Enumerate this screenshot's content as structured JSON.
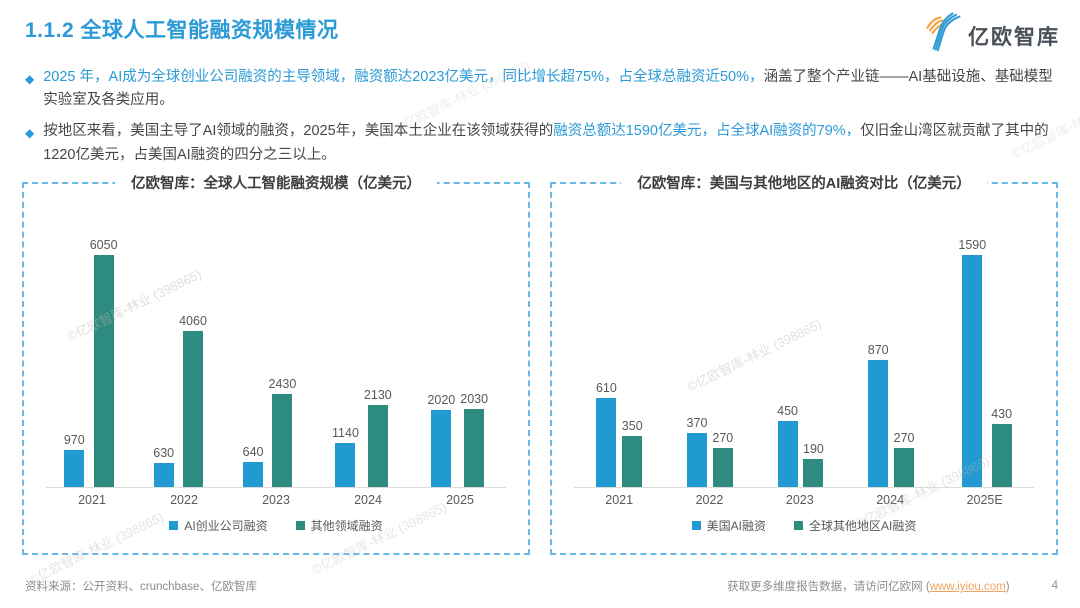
{
  "header": {
    "title": "1.1.2 全球人工智能融资规模情况",
    "brand": "亿欧智库"
  },
  "bullets": [
    {
      "segments": [
        {
          "text": "2025 年，AI成为全球创业公司融资的主导领域，融资额达2023亿美元，同比增长超75%，占全球总融资近50%，",
          "style": "accent"
        },
        {
          "text": "涵盖了整个产业链——AI基础设施、基础模型实验室及各类应用。",
          "style": "dark"
        }
      ]
    },
    {
      "segments": [
        {
          "text": "按地区来看，美国主导了AI领域的融资，2025年，美国本土企业在该领域获得的",
          "style": "dark"
        },
        {
          "text": "融资总额达1590亿美元，占全球AI融资的79%，",
          "style": "accent"
        },
        {
          "text": "仅旧金山湾区就贡献了其中的1220亿美元，占美国AI融资的四分之三以上。",
          "style": "dark"
        }
      ]
    }
  ],
  "chart_data": [
    {
      "type": "bar",
      "title": "亿欧智库：全球人工智能融资规模（亿美元）",
      "categories": [
        "2021",
        "2022",
        "2023",
        "2024",
        "2025"
      ],
      "series": [
        {
          "name": "AI创业公司融资",
          "color": "#2199d1",
          "values": [
            970,
            630,
            640,
            1140,
            2020
          ]
        },
        {
          "name": "其他领域融资",
          "color": "#2e8b80",
          "values": [
            6050,
            4060,
            2430,
            2130,
            2030
          ]
        }
      ],
      "ylim": [
        0,
        6050
      ],
      "grid": false,
      "legend_position": "bottom"
    },
    {
      "type": "bar",
      "title": "亿欧智库：美国与其他地区的AI融资对比（亿美元）",
      "categories": [
        "2021",
        "2022",
        "2023",
        "2024",
        "2025E"
      ],
      "series": [
        {
          "name": "美国AI融资",
          "color": "#2199d1",
          "values": [
            610,
            370,
            450,
            870,
            1590
          ]
        },
        {
          "name": "全球其他地区AI融资",
          "color": "#2e8b80",
          "values": [
            350,
            270,
            190,
            270,
            430
          ]
        }
      ],
      "ylim": [
        0,
        1590
      ],
      "grid": false,
      "legend_position": "bottom"
    }
  ],
  "watermark": {
    "text": "©亿欧智库-林业 (398865)"
  },
  "footer": {
    "source": "资料来源：公开资料、crunchbase、亿欧智库",
    "cta_prefix": "获取更多维度报告数据，请访问亿欧网 (",
    "cta_link": "www.iyiou.com",
    "cta_suffix": ")",
    "page": "4"
  },
  "colors": {
    "accent_blue": "#2b9ad6",
    "bar_blue": "#2199d1",
    "bar_teal": "#2e8b80",
    "link_orange": "#f0a35f",
    "logo_orange": "#f6a13f"
  }
}
